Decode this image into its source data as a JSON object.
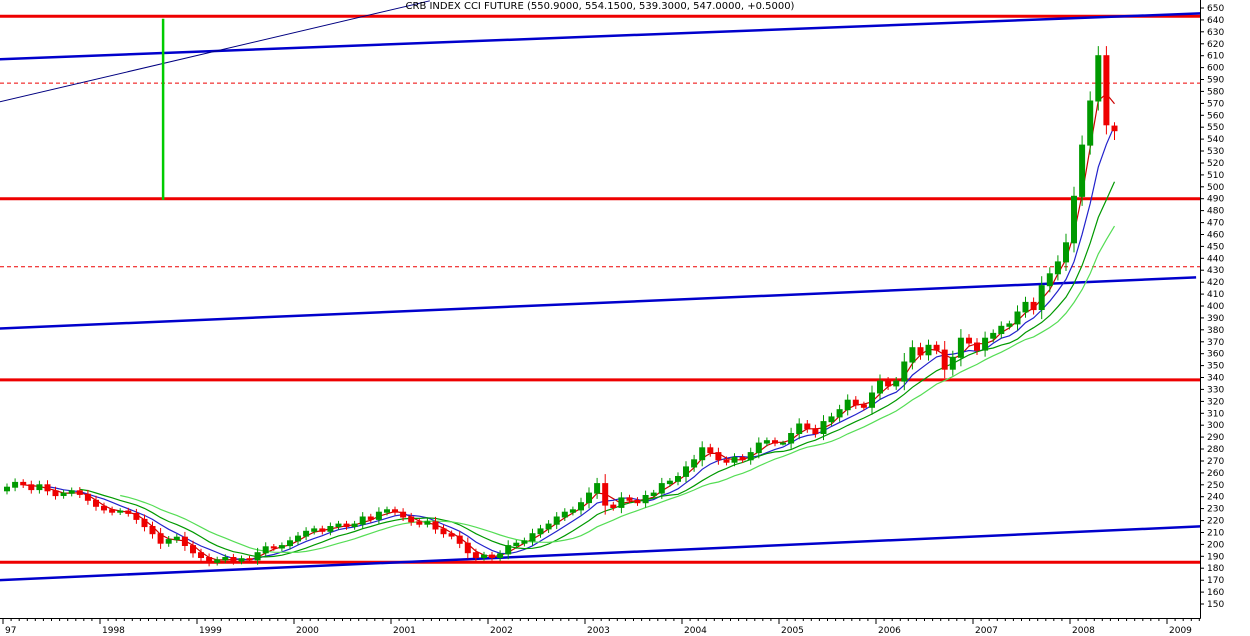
{
  "title": "CRB INDEX CCI FUTURE (550.9000, 554.1500, 539.3000, 547.0000, +0.5000)",
  "chart_data": {
    "type": "candlestick",
    "title": "CRB INDEX CCI FUTURE (550.9000, 554.1500, 539.3000, 547.0000, +0.5000)",
    "instrument": "CRB INDEX CCI FUTURE",
    "quote": {
      "open": 550.9,
      "high": 554.15,
      "low": 539.3,
      "close": 547.0,
      "change": "+0.5000"
    },
    "x_axis": {
      "start_year": 1997,
      "end_year": 2009,
      "tick_labels": [
        "97",
        "1998",
        "1999",
        "2000",
        "2001",
        "2002",
        "2003",
        "2004",
        "2005",
        "2006",
        "2007",
        "2008",
        "2009"
      ]
    },
    "y_axis": {
      "min": 150,
      "max": 650,
      "step": 10
    },
    "series": {
      "monthly_closes": {
        "start": "1997-01",
        "closes": [
          248,
          252,
          250,
          246,
          250,
          245,
          241,
          243,
          245,
          242,
          237,
          232,
          229,
          227,
          228,
          226,
          221,
          215,
          209,
          201,
          204,
          206,
          199,
          193,
          189,
          185,
          187,
          189,
          186,
          188,
          187,
          193,
          198,
          197,
          199,
          203,
          207,
          211,
          213,
          211,
          215,
          217,
          215,
          217,
          223,
          221,
          227,
          229,
          227,
          223,
          219,
          217,
          219,
          213,
          209,
          207,
          201,
          193,
          189,
          191,
          189,
          192,
          199,
          201,
          203,
          209,
          213,
          217,
          223,
          227,
          229,
          235,
          243,
          251,
          233,
          231,
          239,
          237,
          235,
          241,
          243,
          251,
          253,
          257,
          265,
          271,
          281,
          277,
          271,
          269,
          273,
          271,
          277,
          285,
          287,
          285,
          285,
          293,
          301,
          297,
          293,
          303,
          307,
          313,
          321,
          317,
          315,
          327,
          337,
          333,
          337,
          353,
          365,
          359,
          367,
          363,
          347,
          357,
          373,
          369,
          363,
          373,
          377,
          383,
          385,
          395,
          403,
          397,
          417,
          427,
          437,
          453,
          492,
          535,
          572,
          610,
          552,
          547
        ]
      },
      "last_bar": {
        "open": 550.9,
        "high": 554.15,
        "low": 539.3,
        "close": 547.0
      }
    },
    "moving_averages": [
      {
        "name": "ma-fast-red",
        "window": 3,
        "color": "#cc0000"
      },
      {
        "name": "ma-medium-blue",
        "window": 6,
        "color": "#2222cc"
      },
      {
        "name": "ma-slow-green",
        "window": 10,
        "color": "#009900"
      },
      {
        "name": "ma-slowest-light-green",
        "window": 15,
        "color": "#55dd55"
      }
    ],
    "horizontal_lines": {
      "solid_red": [
        643,
        490,
        338,
        185
      ],
      "dashed_red": [
        587,
        433
      ]
    },
    "trend_lines": [
      {
        "name": "upper-channel-line",
        "color": "#0000cc",
        "width": 2.5,
        "from": {
          "t": 1996.95,
          "price": 607
        },
        "to": {
          "t": 2009.5,
          "price": 646
        }
      },
      {
        "name": "steep-resistance-line",
        "color": "#000080",
        "width": 1,
        "from": {
          "t": 1996.95,
          "price": 571
        },
        "to": {
          "t": 2001.4,
          "price": 656
        }
      },
      {
        "name": "mid-channel-line",
        "color": "#0000cc",
        "width": 2.5,
        "from": {
          "t": 1996.95,
          "price": 381
        },
        "to": {
          "t": 2009.3,
          "price": 424
        }
      },
      {
        "name": "lower-channel-line",
        "color": "#0000cc",
        "width": 2.5,
        "from": {
          "t": 1996.95,
          "price": 170
        },
        "to": {
          "t": 2009.6,
          "price": 216
        }
      }
    ],
    "vertical_line": {
      "t": 1998.65,
      "price_from": 489,
      "price_to": 641,
      "color": "#00cc00"
    },
    "colors": {
      "up": "#009900",
      "down": "#ee0000",
      "level_line": "#ee0000",
      "axis": "#000000",
      "background": "#ffffff"
    }
  }
}
